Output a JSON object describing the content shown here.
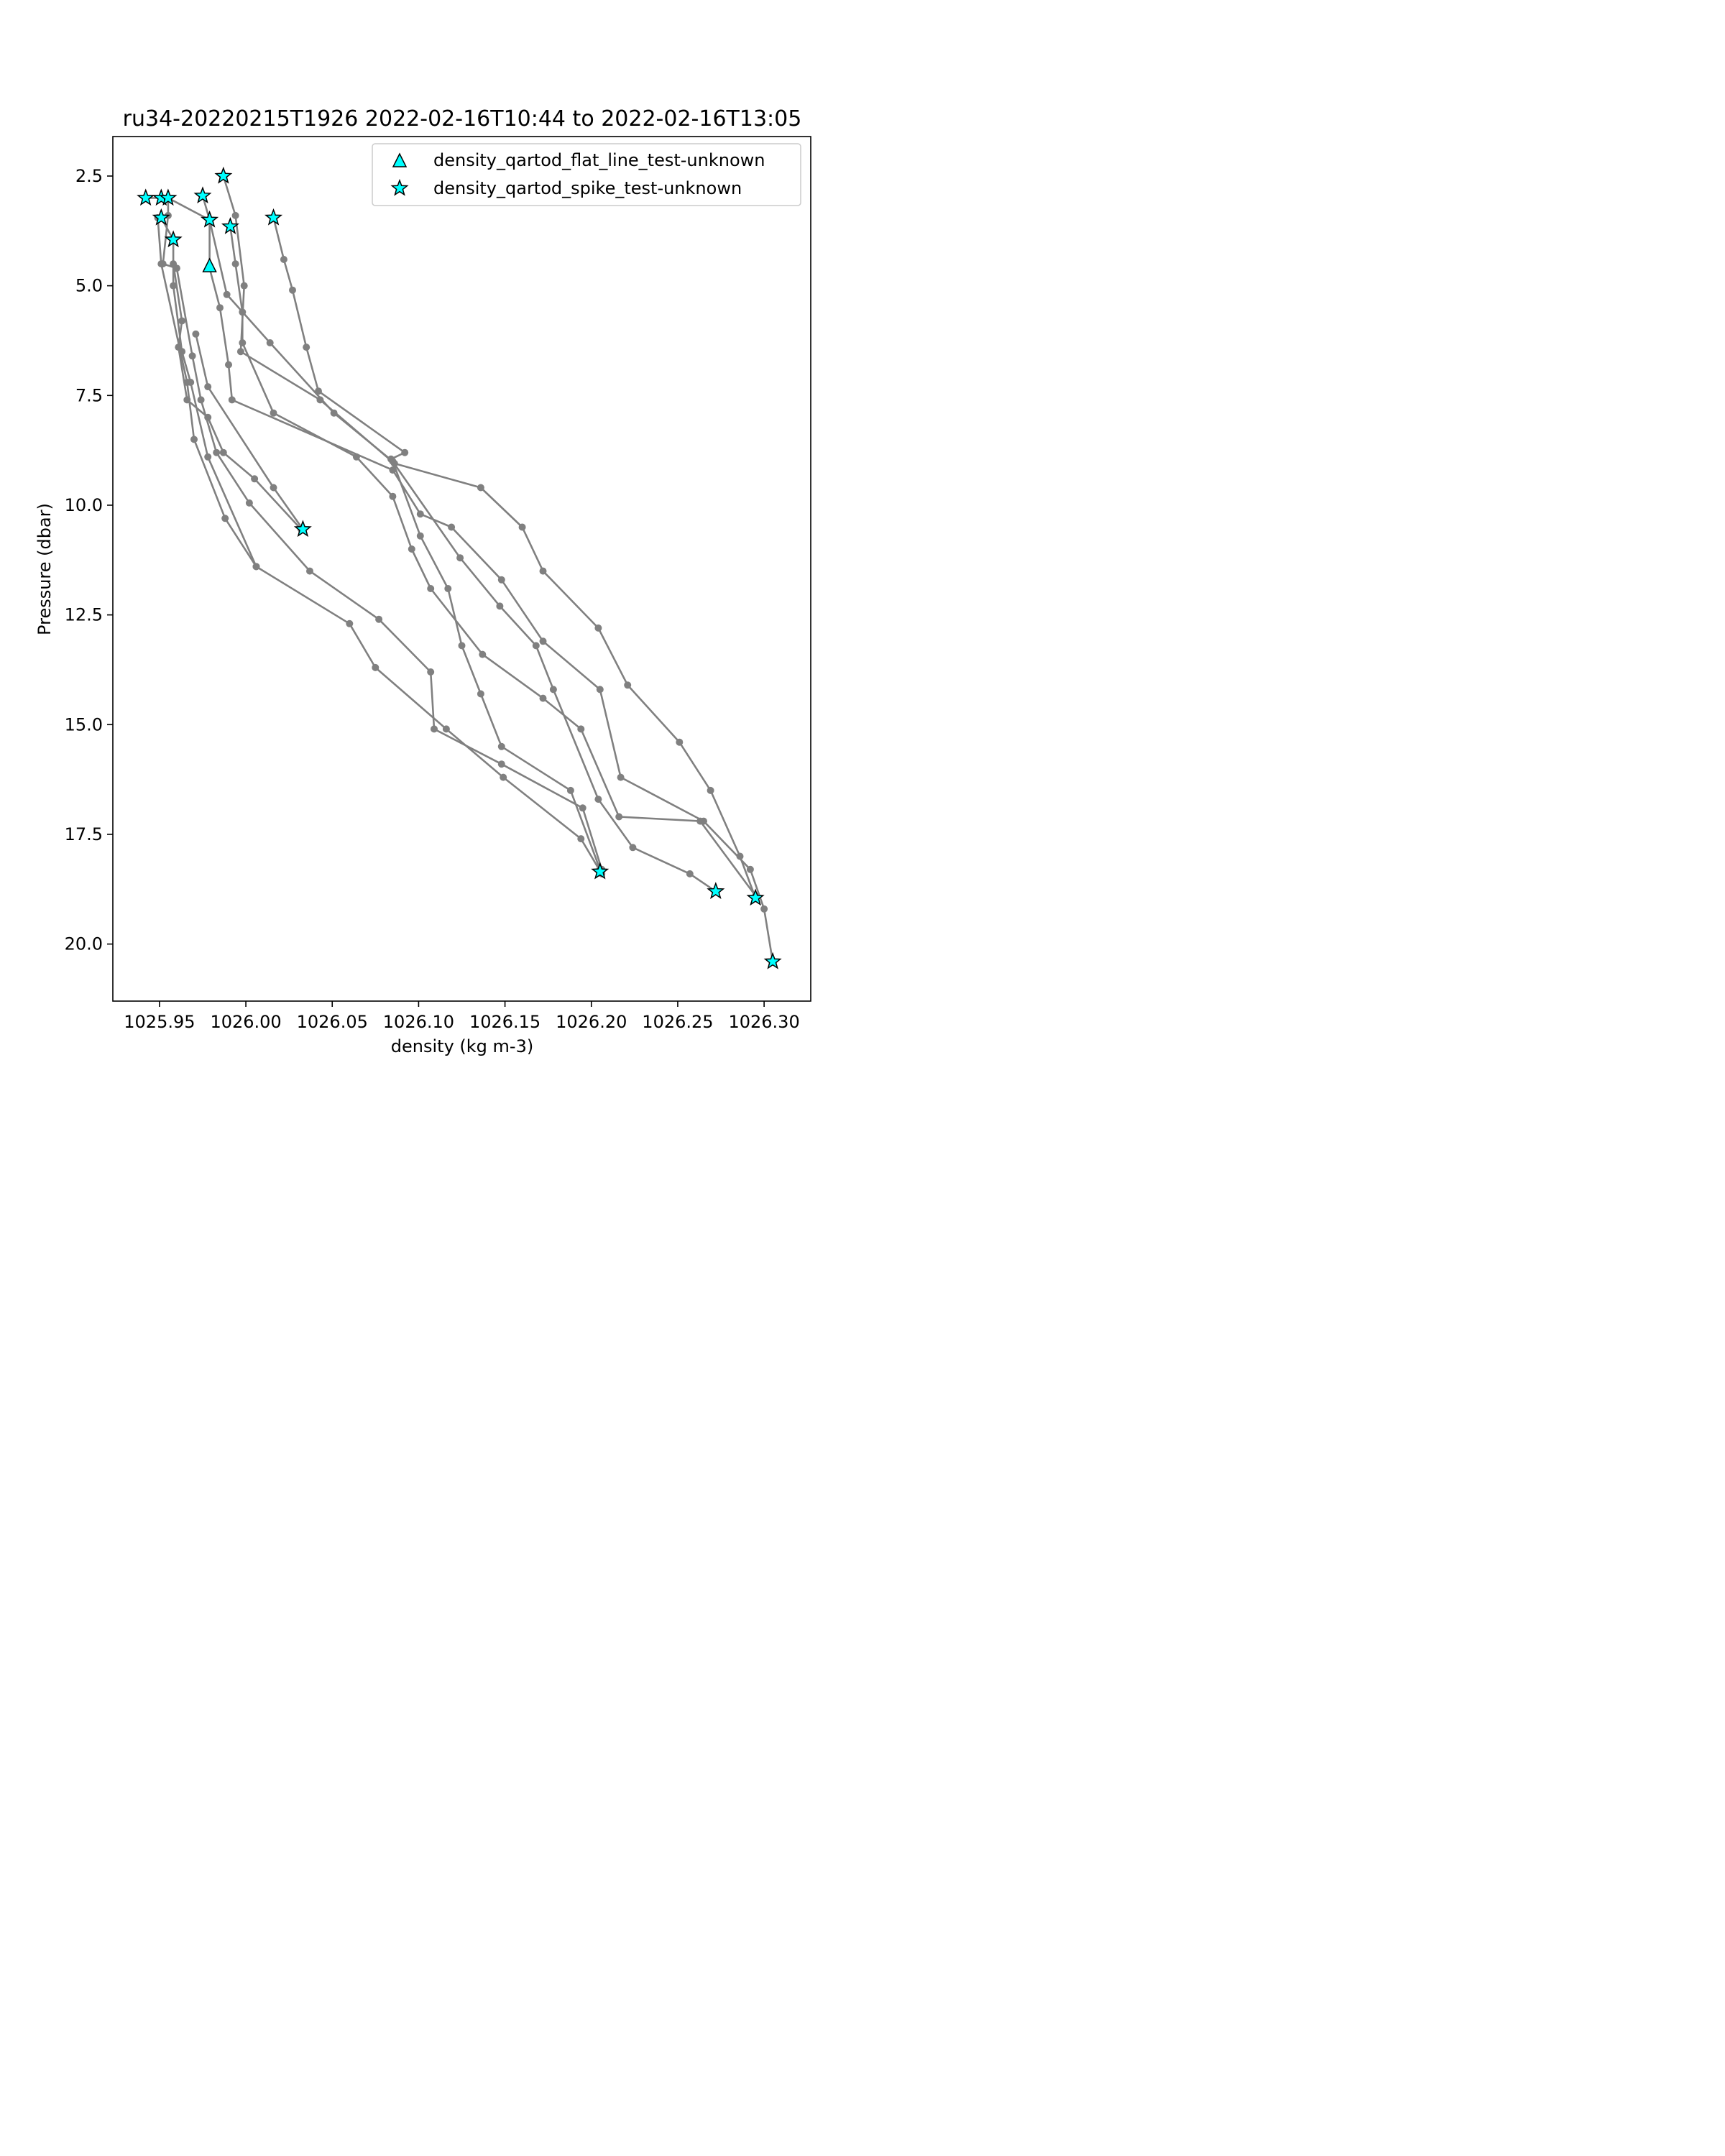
{
  "chart_data": {
    "type": "line",
    "title": "ru34-20220215T1926 2022-02-16T10:44 to 2022-02-16T13:05",
    "xlabel": "density (kg m-3)",
    "ylabel": "Pressure (dbar)",
    "xlim": [
      1025.923,
      1026.327
    ],
    "ylim": [
      21.3,
      1.6
    ],
    "y_inverted": true,
    "grid": false,
    "xticks": [
      1025.95,
      1026.0,
      1026.05,
      1026.1,
      1026.15,
      1026.2,
      1026.25,
      1026.3
    ],
    "xtick_labels": [
      "1025.95",
      "1026.00",
      "1026.05",
      "1026.10",
      "1026.15",
      "1026.20",
      "1026.25",
      "1026.30"
    ],
    "yticks": [
      2.5,
      5.0,
      7.5,
      10.0,
      12.5,
      15.0,
      17.5,
      20.0
    ],
    "ytick_labels": [
      "2.5",
      "5.0",
      "7.5",
      "10.0",
      "12.5",
      "15.0",
      "17.5",
      "20.0"
    ],
    "line_color": "#808080",
    "marker_fill": "#00ffff",
    "legend_placement": "top-right",
    "legend": [
      {
        "label": "density_qartod_flat_line_test-unknown",
        "marker": "triangle"
      },
      {
        "label": "density_qartod_spike_test-unknown",
        "marker": "star"
      }
    ],
    "series": [
      {
        "points": [
          [
            1025.987,
            2.5
          ],
          [
            1025.994,
            3.4
          ],
          [
            1025.999,
            5.0
          ],
          [
            1025.997,
            6.5
          ],
          [
            1026.043,
            7.6
          ],
          [
            1026.086,
            9.05
          ],
          [
            1026.136,
            9.6
          ],
          [
            1026.16,
            10.5
          ],
          [
            1026.172,
            11.5
          ],
          [
            1026.204,
            12.8
          ],
          [
            1026.221,
            14.1
          ],
          [
            1026.251,
            15.4
          ],
          [
            1026.269,
            16.5
          ],
          [
            1026.286,
            18.0
          ],
          [
            1026.295,
            18.95
          ]
        ]
      },
      {
        "points": [
          [
            1025.942,
            3.0
          ],
          [
            1025.951,
            3.0
          ],
          [
            1025.955,
            3.0
          ],
          [
            1025.955,
            3.4
          ],
          [
            1025.952,
            4.5
          ],
          [
            1025.96,
            4.6
          ],
          [
            1025.969,
            6.6
          ],
          [
            1025.974,
            7.6
          ],
          [
            1025.983,
            8.8
          ],
          [
            1026.002,
            9.95
          ],
          [
            1026.037,
            11.5
          ],
          [
            1026.077,
            12.6
          ],
          [
            1026.107,
            13.8
          ],
          [
            1026.109,
            15.1
          ],
          [
            1026.148,
            15.9
          ],
          [
            1026.195,
            16.9
          ],
          [
            1026.206,
            18.3
          ]
        ]
      },
      {
        "points": [
          [
            1025.975,
            2.95
          ],
          [
            1025.979,
            3.5
          ],
          [
            1025.979,
            4.6
          ],
          [
            1025.985,
            5.5
          ],
          [
            1025.99,
            6.8
          ],
          [
            1025.992,
            7.6
          ],
          [
            1026.085,
            9.2
          ],
          [
            1026.101,
            10.2
          ],
          [
            1026.119,
            10.5
          ],
          [
            1026.148,
            11.7
          ],
          [
            1026.172,
            13.1
          ],
          [
            1026.205,
            14.2
          ],
          [
            1026.217,
            16.2
          ],
          [
            1026.265,
            17.2
          ],
          [
            1026.292,
            18.3
          ],
          [
            1026.3,
            19.2
          ],
          [
            1026.305,
            20.4
          ]
        ]
      },
      {
        "points": [
          [
            1025.951,
            3.45
          ],
          [
            1025.958,
            3.95
          ],
          [
            1025.958,
            5.0
          ],
          [
            1025.963,
            6.5
          ],
          [
            1025.968,
            7.2
          ],
          [
            1025.978,
            8.9
          ],
          [
            1026.006,
            11.4
          ],
          [
            1026.06,
            12.7
          ],
          [
            1026.075,
            13.7
          ],
          [
            1026.116,
            15.1
          ],
          [
            1026.149,
            16.2
          ],
          [
            1026.194,
            17.6
          ],
          [
            1026.206,
            18.4
          ]
        ]
      },
      {
        "points": [
          [
            1026.016,
            3.45
          ],
          [
            1026.022,
            4.4
          ],
          [
            1026.027,
            5.1
          ],
          [
            1026.035,
            6.4
          ],
          [
            1026.042,
            7.4
          ],
          [
            1026.092,
            8.8
          ],
          [
            1026.084,
            8.95
          ],
          [
            1026.124,
            11.2
          ],
          [
            1026.147,
            12.3
          ],
          [
            1026.168,
            13.2
          ],
          [
            1026.178,
            14.2
          ],
          [
            1026.204,
            16.7
          ],
          [
            1026.224,
            17.8
          ],
          [
            1026.257,
            18.4
          ],
          [
            1026.272,
            18.8
          ]
        ]
      },
      {
        "points": [
          [
            1025.991,
            3.65
          ],
          [
            1025.994,
            4.5
          ],
          [
            1025.998,
            5.6
          ],
          [
            1025.998,
            6.3
          ],
          [
            1026.016,
            7.9
          ],
          [
            1026.064,
            8.9
          ],
          [
            1026.085,
            9.8
          ],
          [
            1026.096,
            11.0
          ],
          [
            1026.107,
            11.9
          ],
          [
            1026.137,
            13.4
          ],
          [
            1026.172,
            14.4
          ],
          [
            1026.194,
            15.1
          ],
          [
            1026.216,
            17.1
          ],
          [
            1026.263,
            17.2
          ],
          [
            1026.295,
            18.9
          ]
        ]
      },
      {
        "points": [
          [
            1025.955,
            3.0
          ],
          [
            1025.979,
            3.5
          ],
          [
            1025.989,
            5.2
          ],
          [
            1026.014,
            6.3
          ],
          [
            1026.051,
            7.9
          ],
          [
            1026.085,
            9.0
          ],
          [
            1026.101,
            10.7
          ],
          [
            1026.117,
            11.9
          ],
          [
            1026.125,
            13.2
          ],
          [
            1026.136,
            14.3
          ],
          [
            1026.148,
            15.5
          ],
          [
            1026.188,
            16.5
          ],
          [
            1026.205,
            18.3
          ]
        ]
      },
      {
        "points": [
          [
            1025.958,
            4.5
          ],
          [
            1025.963,
            5.8
          ],
          [
            1025.961,
            6.4
          ],
          [
            1025.966,
            7.6
          ],
          [
            1025.978,
            8.0
          ],
          [
            1025.987,
            8.8
          ],
          [
            1026.005,
            9.4
          ],
          [
            1026.032,
            10.55
          ]
        ]
      },
      {
        "points": [
          [
            1025.971,
            6.1
          ],
          [
            1025.978,
            7.3
          ],
          [
            1026.016,
            9.6
          ],
          [
            1026.033,
            10.55
          ]
        ]
      },
      {
        "points": [
          [
            1025.949,
            3.45
          ],
          [
            1025.951,
            4.5
          ],
          [
            1025.966,
            7.2
          ],
          [
            1025.97,
            8.5
          ],
          [
            1025.988,
            10.3
          ],
          [
            1026.006,
            11.4
          ]
        ]
      }
    ],
    "flat_line_flags": [
      [
        1025.979,
        4.55
      ]
    ],
    "spike_flags": [
      [
        1025.987,
        2.5
      ],
      [
        1025.942,
        3.0
      ],
      [
        1025.951,
        3.0
      ],
      [
        1025.955,
        3.0
      ],
      [
        1025.975,
        2.95
      ],
      [
        1025.979,
        3.5
      ],
      [
        1025.991,
        3.65
      ],
      [
        1026.016,
        3.45
      ],
      [
        1025.951,
        3.45
      ],
      [
        1025.958,
        3.95
      ],
      [
        1026.033,
        10.55
      ],
      [
        1026.205,
        18.35
      ],
      [
        1026.272,
        18.8
      ],
      [
        1026.295,
        18.95
      ],
      [
        1026.305,
        20.4
      ]
    ]
  }
}
